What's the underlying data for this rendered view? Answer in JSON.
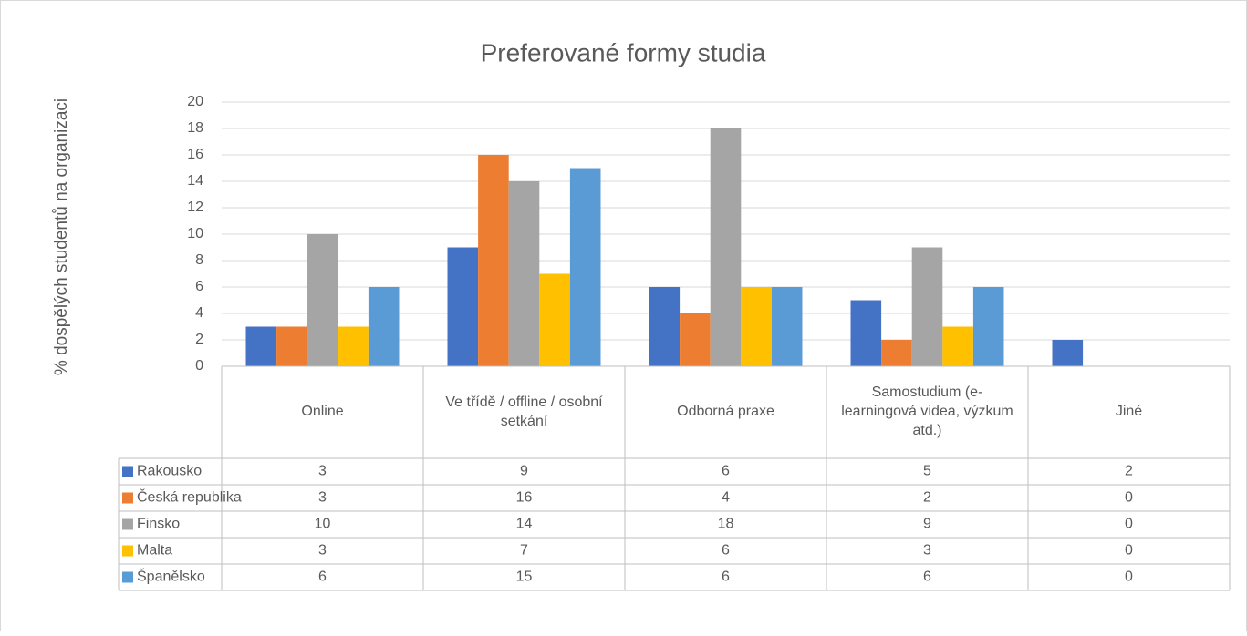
{
  "chart_data": {
    "type": "bar",
    "title": "Preferované formy studia",
    "y_label": "% dospělých studentů na organizaci",
    "categories": [
      "Online",
      "Ve třídě / offline / osobní setkání",
      "Odborná praxe",
      "Samostudium (e-learningová videa, výzkum atd.)",
      "Jiné"
    ],
    "series": [
      {
        "name": "Rakousko",
        "color": "#4472c4",
        "values": [
          3,
          9,
          6,
          5,
          2
        ]
      },
      {
        "name": "Česká republika",
        "color": "#ed7d31",
        "values": [
          3,
          16,
          4,
          2,
          0
        ]
      },
      {
        "name": "Finsko",
        "color": "#a5a5a5",
        "values": [
          10,
          14,
          18,
          9,
          0
        ]
      },
      {
        "name": "Malta",
        "color": "#ffc000",
        "values": [
          3,
          7,
          6,
          3,
          0
        ]
      },
      {
        "name": "Španělsko",
        "color": "#5b9bd5",
        "values": [
          6,
          15,
          6,
          6,
          0
        ]
      }
    ],
    "ylim": [
      0,
      20
    ],
    "yticks": [
      0,
      2,
      4,
      6,
      8,
      10,
      12,
      14,
      16,
      18,
      20
    ],
    "grid": true,
    "data_table": true
  }
}
